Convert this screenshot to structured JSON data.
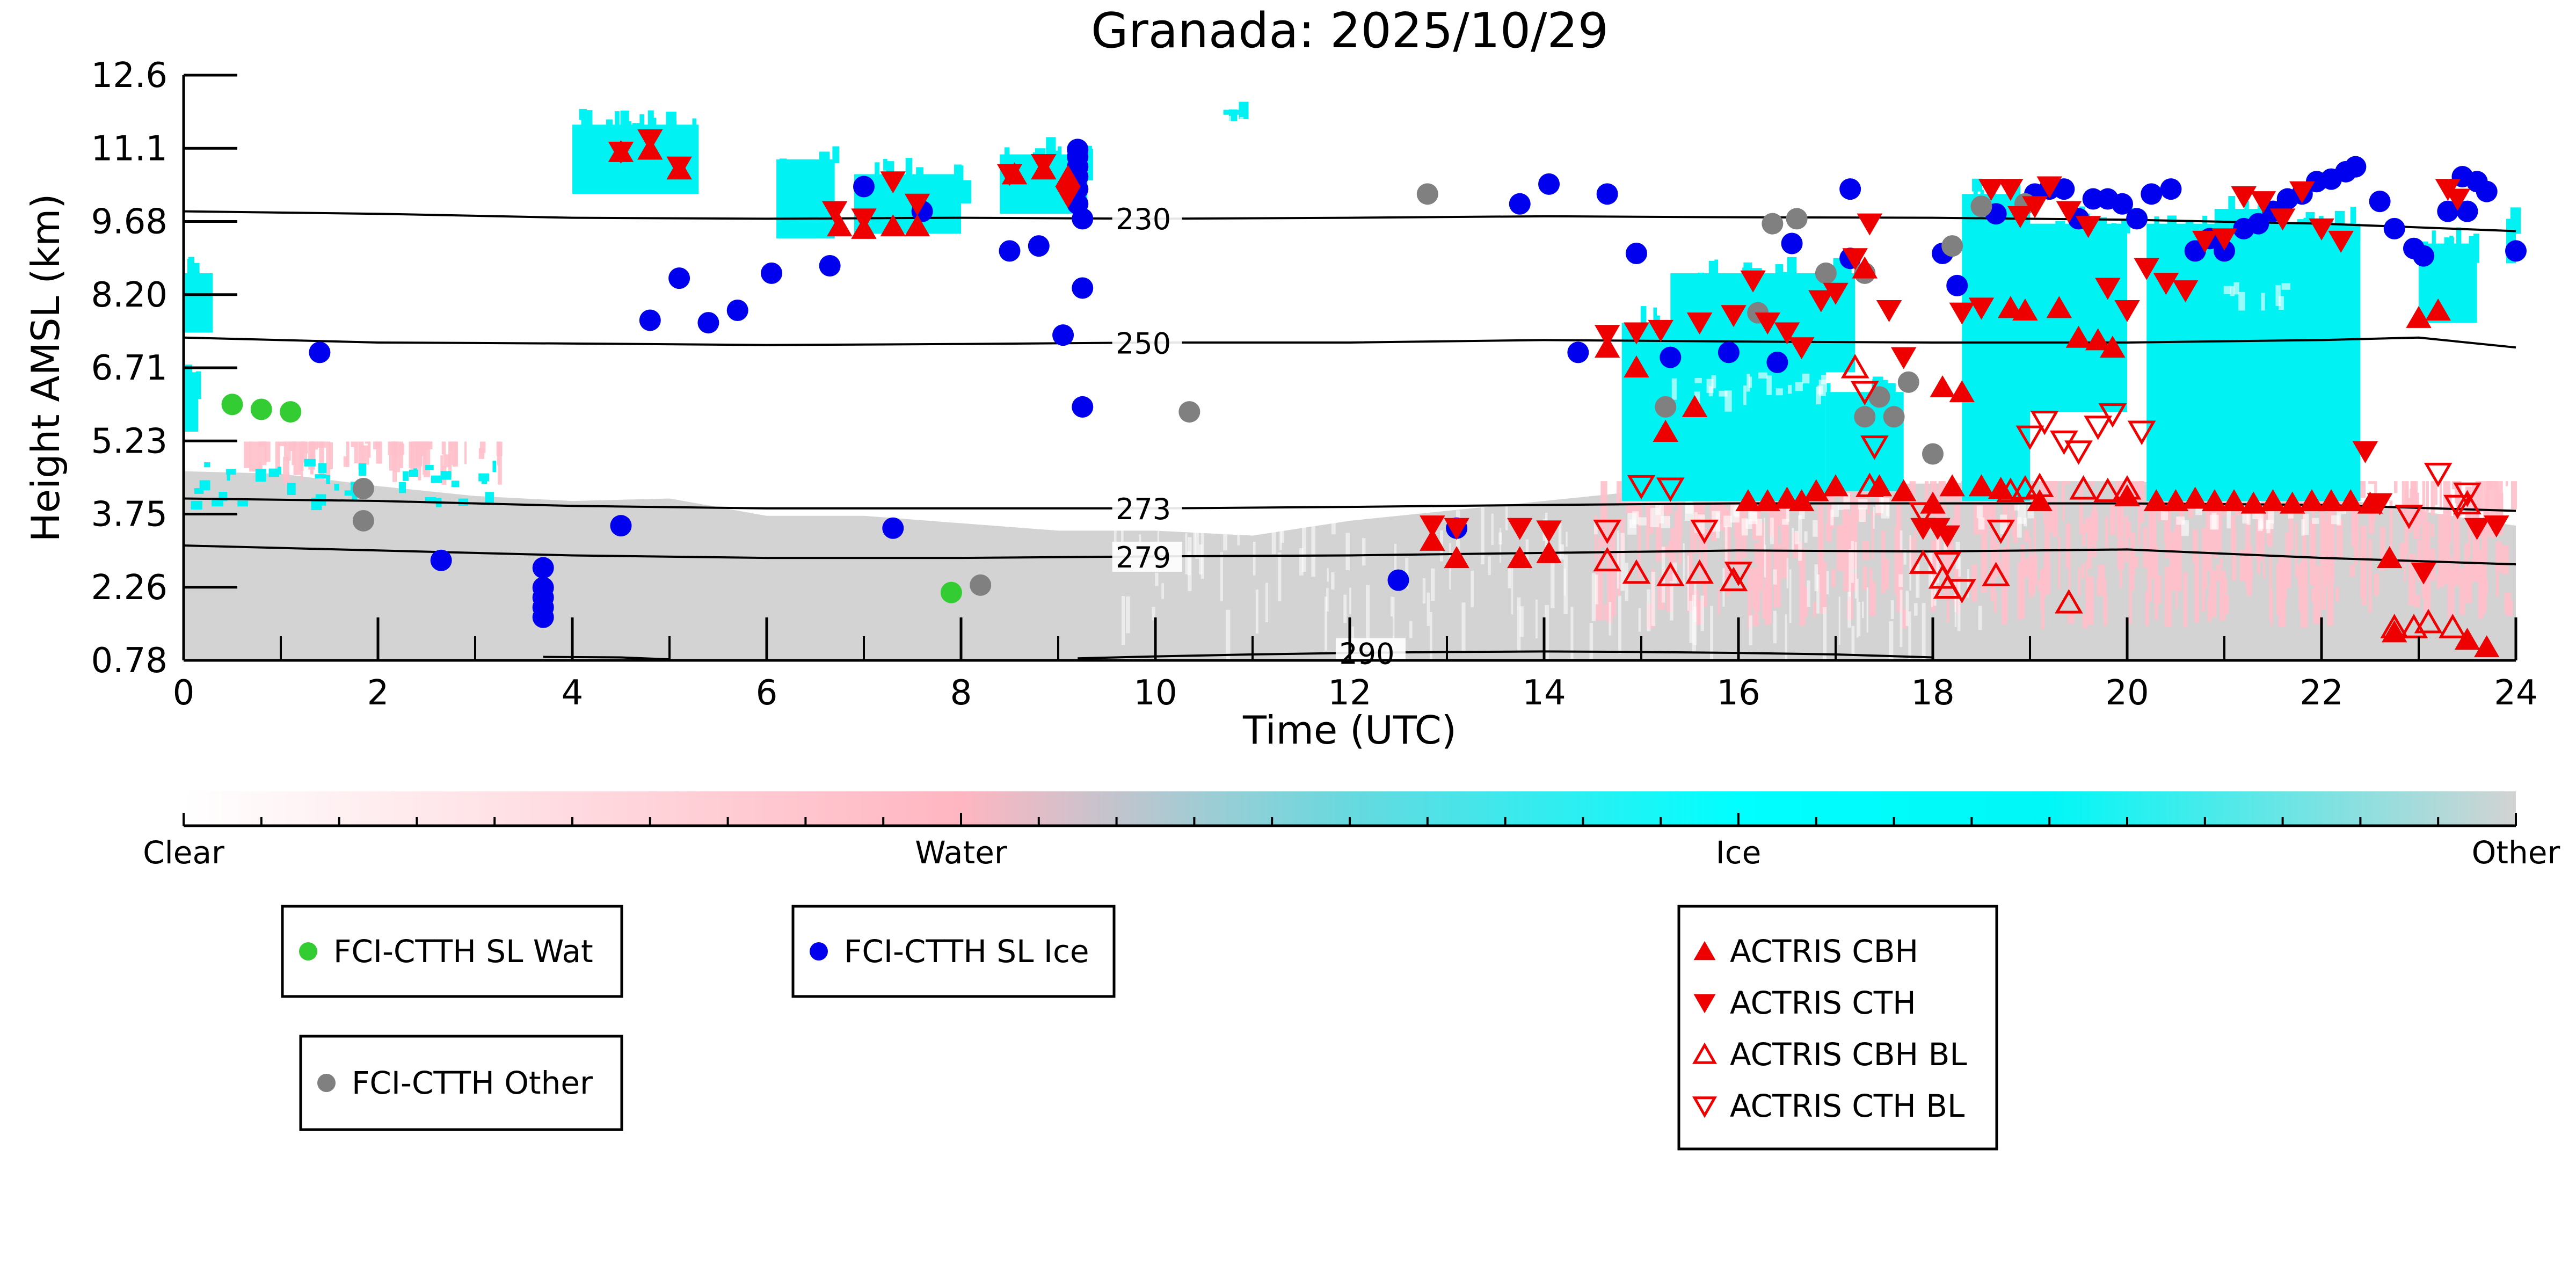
{
  "chart_data": {
    "type": "scatter",
    "title": "Granada: 2025/10/29",
    "xlabel": "Time (UTC)",
    "ylabel": "Height AMSL (km)",
    "xlim": [
      0,
      24
    ],
    "ylim": [
      0.78,
      12.6
    ],
    "x_ticks": [
      "0",
      "2",
      "4",
      "6",
      "8",
      "10",
      "12",
      "14",
      "16",
      "18",
      "20",
      "22",
      "24"
    ],
    "y_ticks": [
      "0.78",
      "2.26",
      "3.75",
      "5.23",
      "6.71",
      "8.20",
      "9.68",
      "11.1",
      "12.6"
    ],
    "grid": false,
    "colorbar": {
      "labels": [
        "Clear",
        "Water",
        "Ice",
        "Other"
      ],
      "colors": [
        "#ffffff",
        "#ffb6c1",
        "#00ffff",
        "#d3d3d3"
      ]
    },
    "colors": {
      "water": "#ffc0cb",
      "ice": "#00f2f2",
      "other": "#d3d3d3",
      "sl_wat": "#33cc33",
      "sl_ice": "#0000ee",
      "fci_other": "#808080",
      "actris": "#ee0000",
      "contour": "#000000"
    },
    "contours": [
      {
        "label": "230",
        "label_x": 9.6,
        "points": [
          [
            0,
            9.85
          ],
          [
            2,
            9.8
          ],
          [
            4,
            9.72
          ],
          [
            6,
            9.7
          ],
          [
            8,
            9.72
          ],
          [
            10,
            9.7
          ],
          [
            12,
            9.72
          ],
          [
            14,
            9.75
          ],
          [
            16,
            9.73
          ],
          [
            18,
            9.72
          ],
          [
            20,
            9.68
          ],
          [
            22,
            9.6
          ],
          [
            24,
            9.45
          ]
        ]
      },
      {
        "label": "250",
        "label_x": 9.6,
        "points": [
          [
            0,
            7.3
          ],
          [
            2,
            7.2
          ],
          [
            4,
            7.18
          ],
          [
            6,
            7.15
          ],
          [
            8,
            7.17
          ],
          [
            10,
            7.2
          ],
          [
            12,
            7.2
          ],
          [
            14,
            7.25
          ],
          [
            16,
            7.22
          ],
          [
            18,
            7.2
          ],
          [
            20,
            7.2
          ],
          [
            22,
            7.25
          ],
          [
            23,
            7.3
          ],
          [
            24,
            7.1
          ]
        ]
      },
      {
        "label": "273",
        "label_x": 9.6,
        "points": [
          [
            0,
            4.05
          ],
          [
            2,
            4.0
          ],
          [
            4,
            3.9
          ],
          [
            6,
            3.85
          ],
          [
            8,
            3.85
          ],
          [
            10,
            3.85
          ],
          [
            12,
            3.88
          ],
          [
            14,
            3.92
          ],
          [
            16,
            3.95
          ],
          [
            18,
            3.95
          ],
          [
            20,
            3.95
          ],
          [
            22,
            3.92
          ],
          [
            24,
            3.8
          ]
        ]
      },
      {
        "label": "279",
        "label_x": 9.6,
        "points": [
          [
            0,
            3.1
          ],
          [
            2,
            3.0
          ],
          [
            4,
            2.9
          ],
          [
            6,
            2.85
          ],
          [
            8,
            2.85
          ],
          [
            10,
            2.88
          ],
          [
            12,
            2.9
          ],
          [
            14,
            2.95
          ],
          [
            16,
            3.0
          ],
          [
            18,
            2.98
          ],
          [
            20,
            3.02
          ],
          [
            22,
            2.85
          ],
          [
            24,
            2.72
          ]
        ]
      },
      {
        "label": "290",
        "label_x": 11.9,
        "points": [
          [
            9.2,
            0.82
          ],
          [
            10,
            0.86
          ],
          [
            11,
            0.9
          ],
          [
            12,
            0.93
          ],
          [
            13,
            0.95
          ],
          [
            14,
            0.96
          ],
          [
            15,
            0.95
          ],
          [
            16,
            0.93
          ],
          [
            17,
            0.9
          ],
          [
            18,
            0.84
          ]
        ]
      },
      {
        "label": "",
        "label_x": 0,
        "points": [
          [
            3.7,
            0.85
          ],
          [
            4.5,
            0.84
          ],
          [
            5.0,
            0.8
          ]
        ]
      }
    ],
    "series": [
      {
        "name": "FCI-CTTH SL Wat",
        "marker": "circle",
        "x": [
          0.5,
          0.8,
          1.1,
          7.9
        ],
        "y": [
          5.95,
          5.85,
          5.8,
          2.15
        ]
      },
      {
        "name": "FCI-CTTH SL Ice",
        "marker": "circle",
        "x": [
          1.4,
          2.65,
          3.7,
          3.7,
          3.7,
          3.7,
          3.7,
          4.5,
          4.8,
          5.1,
          5.4,
          5.7,
          6.05,
          6.65,
          7.0,
          7.3,
          7.6,
          8.5,
          8.8,
          9.05,
          9.2,
          9.2,
          9.2,
          9.2,
          9.2,
          9.2,
          9.25,
          9.25,
          9.25,
          13.1,
          12.5,
          13.75,
          14.05,
          14.35,
          14.65,
          14.95,
          15.3,
          15.9,
          16.4,
          16.55,
          17.15,
          17.15,
          18.1,
          18.25,
          18.65,
          19.05,
          19.2,
          19.35,
          19.5,
          19.65,
          19.8,
          19.95,
          20.1,
          20.25,
          20.45,
          20.7,
          20.85,
          21.0,
          21.2,
          21.35,
          21.5,
          21.65,
          21.8,
          21.95,
          22.1,
          22.25,
          22.35,
          22.6,
          22.75,
          22.95,
          23.05,
          23.3,
          23.45,
          23.5,
          23.6,
          23.7,
          24.0
        ],
        "y": [
          7.0,
          2.8,
          2.65,
          2.25,
          2.05,
          1.85,
          1.65,
          3.5,
          7.65,
          8.5,
          7.6,
          7.85,
          8.6,
          8.75,
          10.35,
          3.45,
          9.85,
          9.05,
          9.15,
          7.35,
          11.1,
          10.95,
          10.75,
          10.55,
          10.3,
          10.0,
          9.7,
          8.3,
          5.9,
          3.45,
          2.4,
          10.0,
          10.4,
          7.0,
          10.2,
          9.0,
          6.9,
          7.0,
          6.8,
          9.2,
          10.3,
          8.9,
          9.0,
          8.35,
          9.8,
          10.2,
          10.3,
          10.3,
          9.7,
          10.1,
          10.1,
          10.0,
          9.7,
          10.2,
          10.3,
          9.05,
          9.3,
          9.05,
          9.5,
          9.6,
          9.85,
          10.1,
          10.2,
          10.45,
          10.5,
          10.65,
          10.75,
          10.05,
          9.5,
          9.1,
          8.95,
          9.85,
          10.55,
          9.85,
          10.45,
          10.25,
          9.05
        ]
      },
      {
        "name": "FCI-CTTH Other",
        "marker": "circle",
        "x": [
          1.85,
          1.85,
          8.2,
          10.35,
          12.8,
          15.25,
          16.2,
          16.35,
          16.6,
          16.9,
          17.3,
          17.3,
          17.45,
          17.6,
          17.75,
          18.0,
          18.2,
          18.5,
          18.95
        ],
        "y": [
          4.25,
          3.6,
          2.3,
          5.8,
          10.2,
          5.9,
          7.8,
          9.6,
          9.7,
          8.6,
          8.6,
          5.7,
          6.1,
          5.7,
          6.4,
          4.95,
          9.15,
          9.95,
          10.0
        ]
      },
      {
        "name": "ACTRIS CBH",
        "marker": "triangle-up",
        "x": [
          4.5,
          4.8,
          5.1,
          6.75,
          7.0,
          7.3,
          7.55,
          8.55,
          8.85,
          9.1,
          12.85,
          13.1,
          13.75,
          14.05,
          14.65,
          14.95,
          15.25,
          15.55,
          16.1,
          16.3,
          16.5,
          16.65,
          16.8,
          17.0,
          17.3,
          17.45,
          17.7,
          18.0,
          18.1,
          18.2,
          18.3,
          18.5,
          18.7,
          18.8,
          18.95,
          19.1,
          19.3,
          19.5,
          19.7,
          19.85,
          20.0,
          20.3,
          20.5,
          20.7,
          20.9,
          21.1,
          21.3,
          21.5,
          21.7,
          21.9,
          22.1,
          22.3,
          22.5,
          22.7,
          22.75,
          23.0,
          23.2,
          23.5,
          23.7
        ],
        "y": [
          11.05,
          11.1,
          10.7,
          9.55,
          9.5,
          9.55,
          9.55,
          10.6,
          10.7,
          10.55,
          3.2,
          2.85,
          2.85,
          2.95,
          7.1,
          6.7,
          5.4,
          5.9,
          4.0,
          4.0,
          4.05,
          4.0,
          4.2,
          4.3,
          8.7,
          4.3,
          4.2,
          3.95,
          6.3,
          4.3,
          6.2,
          4.3,
          4.25,
          7.9,
          7.85,
          4.0,
          7.9,
          7.3,
          7.25,
          7.1,
          4.1,
          4.0,
          4.0,
          4.05,
          4.0,
          4.0,
          3.95,
          4.0,
          3.95,
          4.0,
          4.0,
          4.0,
          3.95,
          2.85,
          1.35,
          7.7,
          7.85,
          1.2,
          1.05
        ]
      },
      {
        "name": "ACTRIS CTH",
        "marker": "triangle-down",
        "x": [
          4.5,
          4.8,
          5.1,
          6.7,
          7.0,
          7.3,
          7.55,
          8.5,
          8.85,
          9.1,
          12.85,
          13.1,
          13.75,
          14.05,
          14.65,
          14.95,
          15.2,
          15.6,
          15.95,
          16.15,
          16.3,
          16.5,
          16.65,
          16.85,
          17.0,
          17.2,
          17.35,
          17.55,
          17.7,
          17.9,
          18.05,
          18.15,
          18.3,
          18.5,
          18.6,
          18.8,
          18.9,
          19.05,
          19.2,
          19.4,
          19.6,
          19.8,
          20.0,
          20.2,
          20.4,
          20.6,
          20.8,
          21.0,
          21.2,
          21.4,
          21.6,
          21.8,
          22.0,
          22.2,
          22.45,
          22.6,
          23.05,
          23.3,
          23.4,
          23.6,
          23.8
        ],
        "y": [
          11.05,
          11.3,
          10.75,
          9.85,
          9.7,
          10.45,
          10.0,
          10.6,
          10.8,
          10.15,
          3.5,
          3.45,
          3.45,
          3.4,
          7.35,
          7.4,
          7.45,
          7.6,
          7.75,
          8.45,
          7.6,
          7.4,
          7.1,
          8.05,
          8.2,
          8.9,
          9.6,
          7.85,
          6.9,
          3.45,
          3.45,
          3.3,
          7.8,
          7.9,
          10.3,
          10.3,
          9.75,
          9.95,
          10.35,
          9.85,
          9.55,
          8.3,
          7.85,
          8.7,
          8.4,
          8.25,
          9.25,
          9.3,
          10.15,
          10.05,
          9.7,
          10.25,
          9.5,
          9.25,
          5.0,
          3.95,
          2.55,
          10.3,
          10.1,
          3.45,
          3.5
        ]
      },
      {
        "name": "ACTRIS CBH BL",
        "marker": "triangle-up-open",
        "x": [
          14.65,
          14.95,
          15.3,
          15.6,
          15.95,
          17.2,
          17.35,
          17.9,
          18.1,
          18.15,
          18.65,
          18.8,
          18.95,
          19.1,
          19.4,
          19.55,
          19.8,
          20.0,
          22.75,
          22.95,
          23.1,
          23.35,
          23.5
        ],
        "y": [
          2.8,
          2.55,
          2.5,
          2.55,
          2.4,
          6.7,
          4.3,
          2.75,
          2.45,
          2.25,
          2.5,
          4.2,
          4.25,
          4.3,
          1.95,
          4.25,
          4.2,
          4.25,
          1.45,
          1.45,
          1.55,
          1.45,
          3.95
        ]
      },
      {
        "name": "ACTRIS CTH BL",
        "marker": "triangle-down-open",
        "x": [
          14.65,
          15.0,
          15.3,
          15.65,
          16.0,
          17.3,
          17.4,
          17.9,
          18.15,
          18.3,
          18.7,
          19.0,
          19.15,
          19.35,
          19.5,
          19.7,
          19.85,
          20.15,
          22.9,
          23.2,
          23.4,
          23.5
        ],
        "y": [
          3.4,
          4.3,
          4.25,
          3.4,
          2.55,
          6.2,
          5.1,
          3.75,
          2.75,
          2.2,
          3.4,
          5.3,
          5.6,
          5.2,
          5.0,
          5.5,
          5.75,
          5.4,
          3.7,
          4.55,
          3.9,
          4.15
        ]
      }
    ],
    "legend": [
      {
        "label": "FCI-CTTH SL Wat",
        "marker": "circle",
        "color": "#33cc33"
      },
      {
        "label": "FCI-CTTH SL Ice",
        "marker": "circle",
        "color": "#0000ee"
      },
      {
        "label": "FCI-CTTH Other",
        "marker": "circle",
        "color": "#808080"
      },
      {
        "label": "ACTRIS CBH",
        "marker": "triangle-up",
        "color": "#ee0000"
      },
      {
        "label": "ACTRIS CTH",
        "marker": "triangle-down",
        "color": "#ee0000"
      },
      {
        "label": "ACTRIS CBH BL",
        "marker": "triangle-up-open",
        "color": "#ee0000"
      },
      {
        "label": "ACTRIS CTH BL",
        "marker": "triangle-down-open",
        "color": "#ee0000"
      }
    ]
  }
}
